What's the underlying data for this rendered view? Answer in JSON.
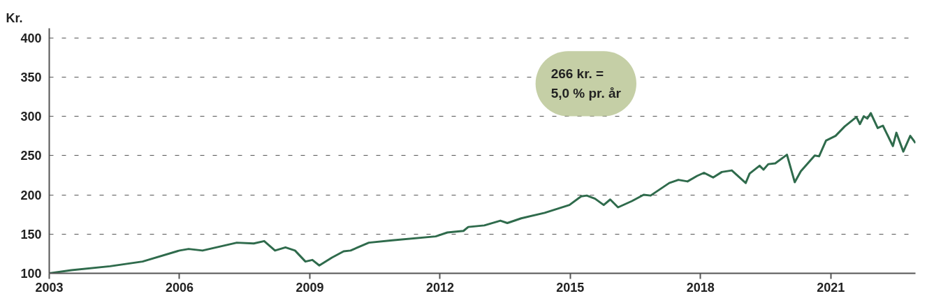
{
  "chart_data": {
    "type": "line",
    "ylabel": "Kr.",
    "annotations": [
      "266 kr. =\n5,0 % pr. år"
    ],
    "x": [
      2003.0,
      2003.51,
      2004.4,
      2005.15,
      2006.0,
      2006.21,
      2006.53,
      2007.32,
      2007.71,
      2007.95,
      2008.2,
      2008.44,
      2008.66,
      2008.9,
      2009.06,
      2009.22,
      2009.51,
      2009.78,
      2009.94,
      2010.36,
      2010.9,
      2011.9,
      2012.17,
      2012.54,
      2012.65,
      2013.02,
      2013.39,
      2013.55,
      2013.87,
      2014.41,
      2014.98,
      2015.25,
      2015.38,
      2015.57,
      2015.77,
      2015.92,
      2016.1,
      2016.42,
      2016.69,
      2016.85,
      2017.28,
      2017.49,
      2017.7,
      2017.92,
      2018.08,
      2018.29,
      2018.49,
      2018.72,
      2018.88,
      2019.04,
      2019.13,
      2019.36,
      2019.45,
      2019.56,
      2019.72,
      2019.99,
      2020.17,
      2020.31,
      2020.63,
      2020.73,
      2020.89,
      2021.11,
      2021.32,
      2021.59,
      2021.67,
      2021.76,
      2021.84,
      2021.92,
      2022.08,
      2022.2,
      2022.43,
      2022.51,
      2022.67,
      2022.83,
      2022.95
    ],
    "series": [
      {
        "color": "#2f6b4c",
        "values": [
          100,
          104,
          109,
          115,
          129,
          131,
          129,
          139,
          138,
          141,
          129,
          133,
          129,
          115,
          117,
          110,
          120,
          128,
          129,
          139,
          142,
          147,
          152,
          154,
          159,
          161,
          167,
          164,
          170,
          177,
          187,
          198,
          199,
          195,
          187,
          194,
          184,
          192,
          200,
          199,
          215,
          219,
          217,
          224,
          228,
          222,
          229,
          231,
          223,
          215,
          227,
          237,
          232,
          239,
          240,
          251,
          216,
          230,
          250,
          249,
          269,
          275,
          287,
          299,
          290,
          300,
          297,
          304,
          285,
          288,
          262,
          279,
          255,
          275,
          266
        ]
      }
    ],
    "xlim": [
      2003,
      2022.95
    ],
    "ylim": [
      100,
      412
    ],
    "xticks": [
      2003,
      2006,
      2009,
      2012,
      2015,
      2018,
      2021
    ],
    "yticks": [
      100,
      150,
      200,
      250,
      300,
      350,
      400
    ],
    "grid": "y",
    "marker": "none",
    "line_style": "solid"
  }
}
